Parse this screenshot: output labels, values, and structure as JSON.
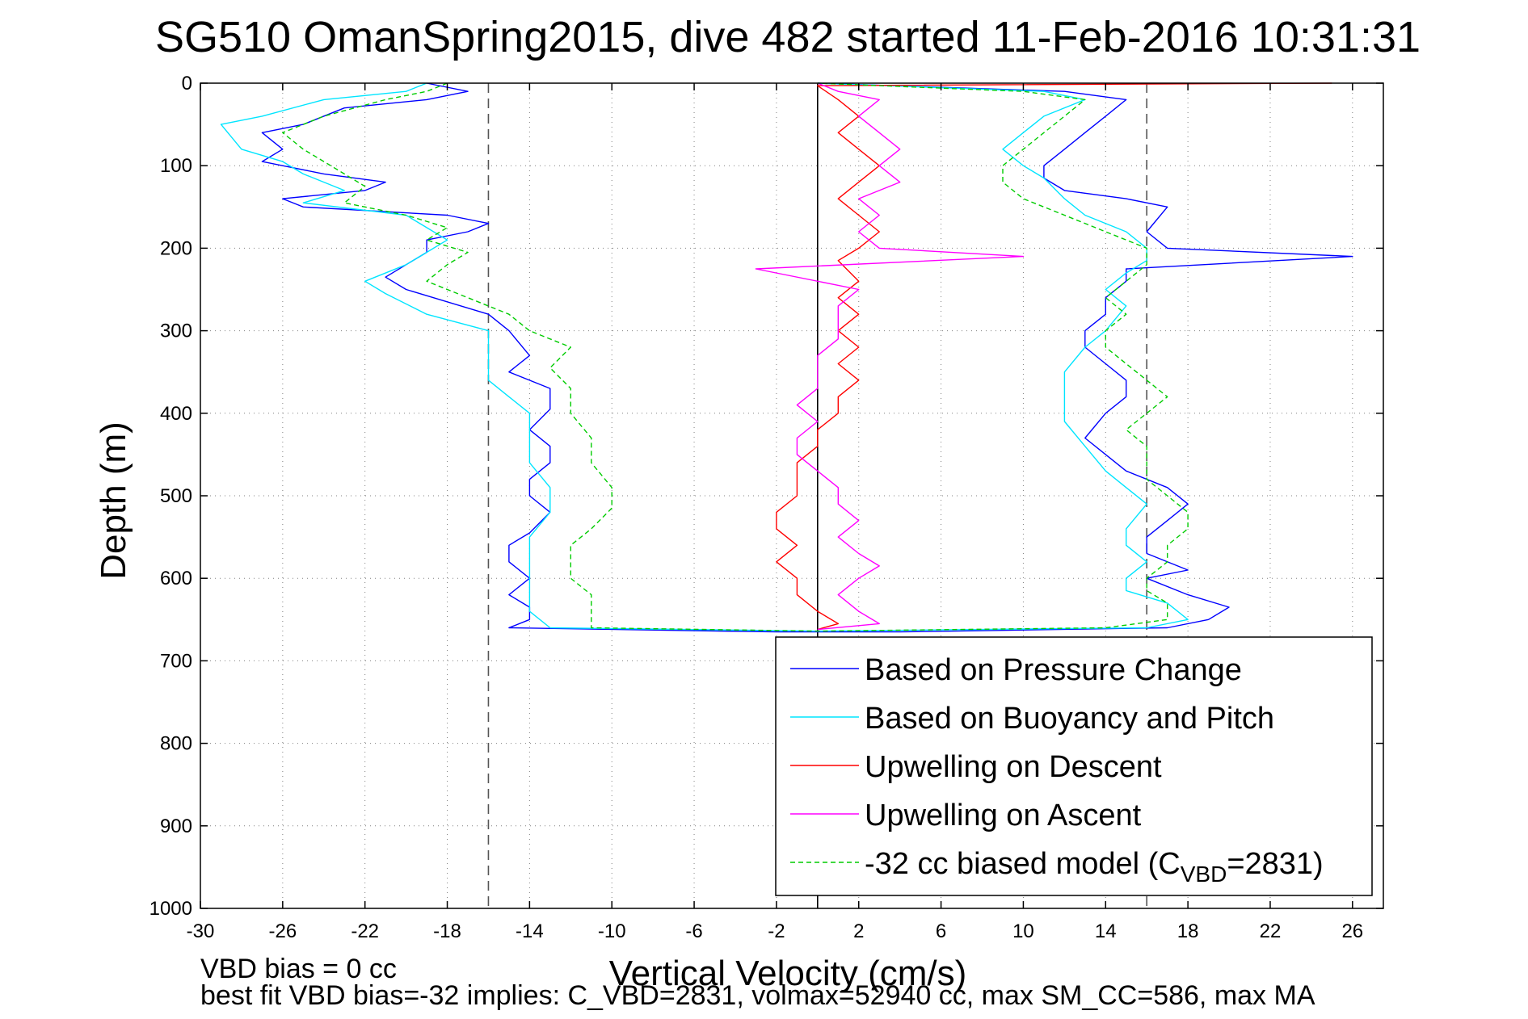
{
  "chart_data": {
    "type": "line",
    "title": "SG510 OmanSpring2015, dive 482 started 11-Feb-2016 10:31:31",
    "xlabel": "Vertical Velocity (cm/s)",
    "ylabel": "Depth (m)",
    "xlim": [
      -30,
      27.5
    ],
    "ylim": [
      0,
      1000
    ],
    "y_reversed": true,
    "grid": true,
    "xticks": [
      -30,
      -26,
      -22,
      -18,
      -14,
      -10,
      -6,
      -2,
      2,
      6,
      10,
      14,
      18,
      22,
      26
    ],
    "yticks": [
      0,
      100,
      200,
      300,
      400,
      500,
      600,
      700,
      800,
      900,
      1000
    ],
    "legend_position": "bottom-right",
    "reference_lines": [
      {
        "x": -16,
        "style": "dashed",
        "color": "#555555"
      },
      {
        "x": 0,
        "style": "solid",
        "color": "#000000"
      },
      {
        "x": 16,
        "style": "dashed",
        "color": "#555555"
      }
    ],
    "series": [
      {
        "name": "Based on Pressure Change",
        "color": "#0000ff",
        "style": "solid",
        "points": [
          [
            -19,
            0
          ],
          [
            -17,
            10
          ],
          [
            -19,
            20
          ],
          [
            -23,
            30
          ],
          [
            -25,
            50
          ],
          [
            -27,
            60
          ],
          [
            -26,
            80
          ],
          [
            -27,
            95
          ],
          [
            -26,
            100
          ],
          [
            -24,
            110
          ],
          [
            -21,
            120
          ],
          [
            -22,
            130
          ],
          [
            -26,
            140
          ],
          [
            -25,
            150
          ],
          [
            -18,
            160
          ],
          [
            -16,
            170
          ],
          [
            -17,
            180
          ],
          [
            -19,
            190
          ],
          [
            -19,
            205
          ],
          [
            -20,
            220
          ],
          [
            -21,
            235
          ],
          [
            -20,
            250
          ],
          [
            -16,
            280
          ],
          [
            -15,
            300
          ],
          [
            -14,
            330
          ],
          [
            -15,
            350
          ],
          [
            -13,
            370
          ],
          [
            -13,
            395
          ],
          [
            -14,
            420
          ],
          [
            -13,
            440
          ],
          [
            -13,
            460
          ],
          [
            -14,
            480
          ],
          [
            -14,
            500
          ],
          [
            -13,
            520
          ],
          [
            -14,
            545
          ],
          [
            -15,
            560
          ],
          [
            -15,
            580
          ],
          [
            -14,
            600
          ],
          [
            -15,
            620
          ],
          [
            -14,
            635
          ],
          [
            -14,
            650
          ],
          [
            -15,
            660
          ],
          [
            -2,
            665
          ],
          [
            4,
            665
          ],
          [
            17,
            660
          ],
          [
            19,
            650
          ],
          [
            20,
            635
          ],
          [
            18,
            620
          ],
          [
            16,
            600
          ],
          [
            18,
            590
          ],
          [
            16,
            570
          ],
          [
            16,
            550
          ],
          [
            17,
            530
          ],
          [
            18,
            510
          ],
          [
            17,
            490
          ],
          [
            15,
            470
          ],
          [
            14,
            450
          ],
          [
            13,
            430
          ],
          [
            14,
            400
          ],
          [
            15,
            380
          ],
          [
            15,
            360
          ],
          [
            14,
            340
          ],
          [
            13,
            320
          ],
          [
            13,
            300
          ],
          [
            14,
            280
          ],
          [
            14,
            260
          ],
          [
            15,
            240
          ],
          [
            15,
            225
          ],
          [
            26,
            210
          ],
          [
            17,
            200
          ],
          [
            16,
            180
          ],
          [
            17,
            150
          ],
          [
            15,
            140
          ],
          [
            12,
            130
          ],
          [
            11,
            115
          ],
          [
            11,
            100
          ],
          [
            12,
            80
          ],
          [
            13,
            60
          ],
          [
            14,
            40
          ],
          [
            15,
            20
          ],
          [
            12,
            10
          ],
          [
            0,
            0
          ]
        ]
      },
      {
        "name": "Based on Buoyancy and Pitch",
        "color": "#00e5ff",
        "style": "solid",
        "points": [
          [
            -19,
            0
          ],
          [
            -20,
            10
          ],
          [
            -24,
            20
          ],
          [
            -27,
            40
          ],
          [
            -29,
            50
          ],
          [
            -28,
            80
          ],
          [
            -26,
            95
          ],
          [
            -25,
            110
          ],
          [
            -24,
            120
          ],
          [
            -23,
            130
          ],
          [
            -25,
            145
          ],
          [
            -20,
            160
          ],
          [
            -19,
            175
          ],
          [
            -18,
            190
          ],
          [
            -19,
            205
          ],
          [
            -20,
            220
          ],
          [
            -22,
            240
          ],
          [
            -21,
            255
          ],
          [
            -19,
            280
          ],
          [
            -16,
            300
          ],
          [
            -16,
            330
          ],
          [
            -16,
            360
          ],
          [
            -15,
            380
          ],
          [
            -14,
            400
          ],
          [
            -14,
            430
          ],
          [
            -14,
            460
          ],
          [
            -13,
            490
          ],
          [
            -13,
            520
          ],
          [
            -14,
            550
          ],
          [
            -14,
            580
          ],
          [
            -14,
            610
          ],
          [
            -14,
            640
          ],
          [
            -13,
            660
          ],
          [
            0,
            664
          ],
          [
            16,
            660
          ],
          [
            18,
            650
          ],
          [
            17,
            630
          ],
          [
            15,
            615
          ],
          [
            15,
            600
          ],
          [
            16,
            580
          ],
          [
            15,
            560
          ],
          [
            15,
            540
          ],
          [
            16,
            510
          ],
          [
            15,
            490
          ],
          [
            14,
            470
          ],
          [
            13,
            440
          ],
          [
            12,
            410
          ],
          [
            12,
            380
          ],
          [
            12,
            350
          ],
          [
            13,
            320
          ],
          [
            14,
            300
          ],
          [
            15,
            270
          ],
          [
            14,
            250
          ],
          [
            15,
            230
          ],
          [
            16,
            215
          ],
          [
            16,
            200
          ],
          [
            15,
            180
          ],
          [
            13,
            160
          ],
          [
            12,
            140
          ],
          [
            11,
            115
          ],
          [
            10,
            100
          ],
          [
            9,
            80
          ],
          [
            10,
            60
          ],
          [
            11,
            40
          ],
          [
            13,
            20
          ],
          [
            11,
            10
          ],
          [
            0,
            0
          ]
        ]
      },
      {
        "name": "Upwelling on Descent",
        "color": "#ff0000",
        "style": "solid",
        "points": [
          [
            25,
            0
          ],
          [
            0,
            3
          ],
          [
            1,
            20
          ],
          [
            2,
            40
          ],
          [
            1,
            60
          ],
          [
            2,
            80
          ],
          [
            3,
            100
          ],
          [
            2,
            120
          ],
          [
            1,
            140
          ],
          [
            2,
            160
          ],
          [
            3,
            180
          ],
          [
            2,
            200
          ],
          [
            1,
            215
          ],
          [
            2,
            240
          ],
          [
            1,
            260
          ],
          [
            2,
            280
          ],
          [
            1,
            300
          ],
          [
            2,
            320
          ],
          [
            1,
            340
          ],
          [
            2,
            360
          ],
          [
            1,
            380
          ],
          [
            1,
            400
          ],
          [
            0,
            420
          ],
          [
            0,
            440
          ],
          [
            -1,
            460
          ],
          [
            -1,
            480
          ],
          [
            -1,
            500
          ],
          [
            -2,
            520
          ],
          [
            -2,
            540
          ],
          [
            -1,
            560
          ],
          [
            -2,
            580
          ],
          [
            -1,
            600
          ],
          [
            -1,
            620
          ],
          [
            0,
            640
          ],
          [
            1,
            655
          ],
          [
            0,
            662
          ]
        ]
      },
      {
        "name": "Upwelling on Ascent",
        "color": "#ff00ff",
        "style": "solid",
        "points": [
          [
            0,
            662
          ],
          [
            3,
            655
          ],
          [
            2,
            640
          ],
          [
            1,
            620
          ],
          [
            2,
            600
          ],
          [
            3,
            585
          ],
          [
            2,
            570
          ],
          [
            1,
            550
          ],
          [
            2,
            530
          ],
          [
            1,
            510
          ],
          [
            1,
            490
          ],
          [
            0,
            470
          ],
          [
            -1,
            450
          ],
          [
            -1,
            430
          ],
          [
            0,
            410
          ],
          [
            -1,
            390
          ],
          [
            0,
            370
          ],
          [
            0,
            350
          ],
          [
            0,
            330
          ],
          [
            1,
            310
          ],
          [
            1,
            290
          ],
          [
            1,
            270
          ],
          [
            2,
            250
          ],
          [
            -3,
            225
          ],
          [
            10,
            210
          ],
          [
            3,
            200
          ],
          [
            2,
            180
          ],
          [
            3,
            160
          ],
          [
            2,
            140
          ],
          [
            4,
            120
          ],
          [
            3,
            100
          ],
          [
            4,
            80
          ],
          [
            3,
            60
          ],
          [
            2,
            40
          ],
          [
            3,
            20
          ],
          [
            1,
            10
          ],
          [
            0,
            0
          ]
        ]
      },
      {
        "name": "-32 cc biased model (C_VBD=2831)",
        "legend_parts": {
          "prefix": "-32 cc biased model (C",
          "subscript": "VBD",
          "suffix": "=2831)"
        },
        "color": "#00cc00",
        "style": "dashed",
        "points": [
          [
            -18,
            0
          ],
          [
            -19,
            10
          ],
          [
            -21,
            20
          ],
          [
            -24,
            40
          ],
          [
            -26,
            60
          ],
          [
            -25,
            80
          ],
          [
            -24,
            95
          ],
          [
            -23,
            110
          ],
          [
            -22,
            125
          ],
          [
            -23,
            145
          ],
          [
            -20,
            160
          ],
          [
            -18,
            175
          ],
          [
            -19,
            190
          ],
          [
            -17,
            205
          ],
          [
            -18,
            220
          ],
          [
            -19,
            240
          ],
          [
            -17,
            260
          ],
          [
            -15,
            280
          ],
          [
            -14,
            300
          ],
          [
            -12,
            320
          ],
          [
            -13,
            345
          ],
          [
            -12,
            370
          ],
          [
            -12,
            400
          ],
          [
            -11,
            430
          ],
          [
            -11,
            460
          ],
          [
            -10,
            490
          ],
          [
            -10,
            515
          ],
          [
            -11,
            540
          ],
          [
            -12,
            560
          ],
          [
            -12,
            580
          ],
          [
            -12,
            600
          ],
          [
            -11,
            620
          ],
          [
            -11,
            640
          ],
          [
            -11,
            660
          ],
          [
            0,
            664
          ],
          [
            14,
            660
          ],
          [
            17,
            650
          ],
          [
            17,
            630
          ],
          [
            16,
            615
          ],
          [
            16,
            600
          ],
          [
            17,
            580
          ],
          [
            17,
            560
          ],
          [
            18,
            540
          ],
          [
            18,
            520
          ],
          [
            17,
            500
          ],
          [
            16,
            480
          ],
          [
            16,
            460
          ],
          [
            16,
            440
          ],
          [
            15,
            420
          ],
          [
            16,
            400
          ],
          [
            17,
            380
          ],
          [
            16,
            360
          ],
          [
            15,
            340
          ],
          [
            14,
            320
          ],
          [
            14,
            300
          ],
          [
            15,
            280
          ],
          [
            14,
            260
          ],
          [
            15,
            240
          ],
          [
            16,
            220
          ],
          [
            16,
            200
          ],
          [
            14,
            180
          ],
          [
            12,
            160
          ],
          [
            10,
            140
          ],
          [
            9,
            120
          ],
          [
            9,
            100
          ],
          [
            10,
            80
          ],
          [
            11,
            60
          ],
          [
            12,
            40
          ],
          [
            13,
            20
          ],
          [
            10,
            10
          ],
          [
            0,
            0
          ]
        ]
      }
    ],
    "annotations": [
      "VBD bias = 0 cc",
      "best fit VBD bias=-32 implies: C_VBD=2831, volmax=52940 cc, max SM_CC=586, max MA"
    ]
  },
  "colors": {
    "background": "#ffffff",
    "axes": "#000000",
    "grid": "#808080"
  }
}
